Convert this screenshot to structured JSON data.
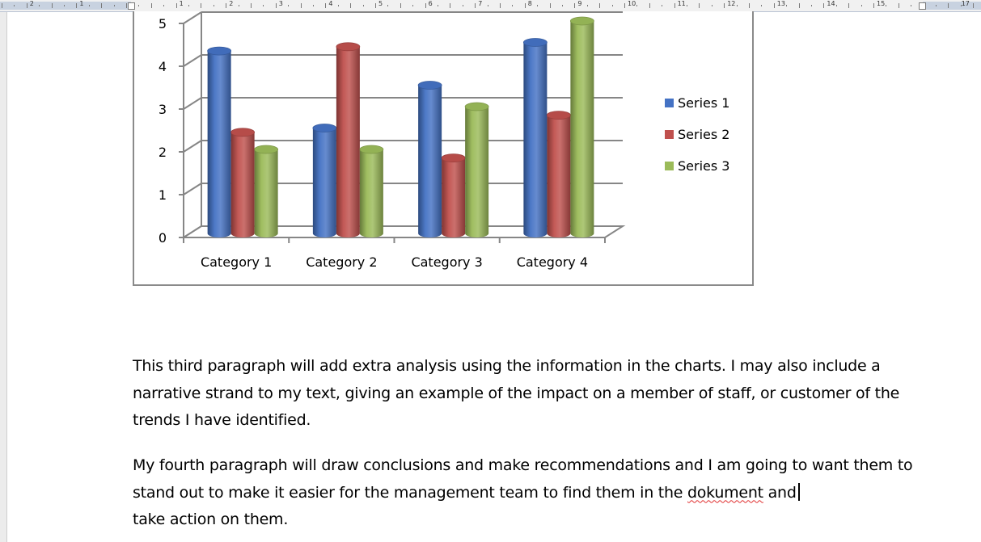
{
  "ruler": {
    "numbers": [
      "2",
      "1",
      "1",
      "2",
      "3",
      "4",
      "5",
      "6",
      "7",
      "8",
      "9",
      "10",
      "11",
      "12",
      "13",
      "14",
      "15",
      "17"
    ]
  },
  "chart_data": {
    "type": "bar",
    "style": "3d-cylinder",
    "categories": [
      "Category 1",
      "Category 2",
      "Category 3",
      "Category 4"
    ],
    "series": [
      {
        "name": "Series 1",
        "values": [
          4.3,
          2.5,
          3.5,
          4.5
        ],
        "color": "#4472c4"
      },
      {
        "name": "Series 2",
        "values": [
          2.4,
          4.4,
          1.8,
          2.8
        ],
        "color": "#c0504d"
      },
      {
        "name": "Series 3",
        "values": [
          2.0,
          2.0,
          3.0,
          5.0
        ],
        "color": "#9bbb59"
      }
    ],
    "yticks": [
      "0",
      "1",
      "2",
      "3",
      "4",
      "5"
    ],
    "ylim": [
      0,
      5
    ],
    "grid": true,
    "legend_position": "right"
  },
  "document": {
    "paragraph3": "This third paragraph will add extra analysis using the information in the charts.  I may also include a narrative strand to my text, giving an example of the impact on a member of staff, or customer of the trends I have identified.",
    "paragraph4_before": "My fourth paragraph will draw conclusions and make recommendations and I am going to want them to stand out to make it easier for the management team to find them in the ",
    "paragraph4_misspelled": "dokument",
    "paragraph4_after": " and",
    "paragraph4_last": "take action on them."
  }
}
